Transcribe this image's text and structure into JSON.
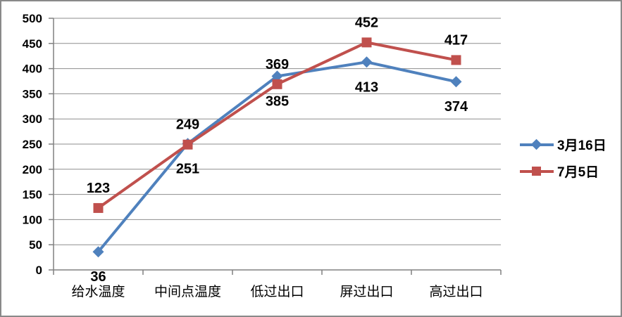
{
  "chart_data": {
    "type": "line",
    "title": "",
    "xlabel": "",
    "ylabel": "",
    "categories": [
      "给水温度",
      "中间点温度",
      "低过出口",
      "屏过出口",
      "高过出口"
    ],
    "series": [
      {
        "name": "3月16日",
        "values": [
          36,
          251,
          385,
          413,
          374
        ],
        "color": "#4F81BD",
        "marker": "diamond",
        "data_label_position": "below"
      },
      {
        "name": "7月5日",
        "values": [
          123,
          249,
          369,
          452,
          417
        ],
        "color": "#C0504D",
        "marker": "square",
        "data_label_position": "above"
      }
    ],
    "ylim": [
      0,
      500
    ],
    "ytick_step": 50,
    "y_tick_labels": [
      "0",
      "50",
      "100",
      "150",
      "200",
      "250",
      "300",
      "350",
      "400",
      "450",
      "500"
    ],
    "grid": true,
    "legend_position": "right",
    "legend_entries": [
      "3月16日",
      "7月5日"
    ],
    "colors": {
      "series1": "#4F81BD",
      "series2": "#C0504D",
      "gridline": "#8E8E8E",
      "axis": "#808080",
      "text": "#000000",
      "frame_border": "#898989",
      "background": "#FFFFFF"
    }
  }
}
